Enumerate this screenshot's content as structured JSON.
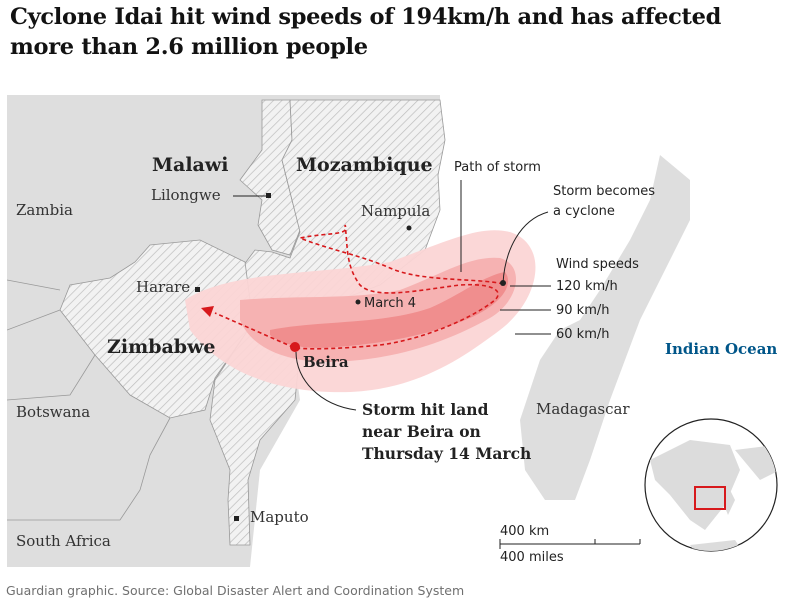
{
  "headline": "Cyclone Idai hit wind speeds of 194km/h and has affected more than 2.6 million people",
  "source": "Guardian graphic. Source: Global Disaster Alert and Coordination System",
  "countries": {
    "malawi": "Malawi",
    "mozambique": "Mozambique",
    "zimbabwe": "Zimbabwe",
    "zambia": "Zambia",
    "botswana": "Botswana",
    "south_africa": "South Africa",
    "madagascar": "Madagascar"
  },
  "cities": {
    "lilongwe": "Lilongwe",
    "harare": "Harare",
    "nampula": "Nampula",
    "beira": "Beira",
    "maputo": "Maputo"
  },
  "ocean": "Indian Ocean",
  "annotations": {
    "path_of_storm": "Path of storm",
    "cyclone_line1": "Storm becomes",
    "cyclone_line2": "a cyclone",
    "march4": "March 4",
    "landfall_line1": "Storm hit land",
    "landfall_line2": "near Beira on",
    "landfall_line3": "Thursday 14 March"
  },
  "wind_speeds": {
    "title": "Wind speeds",
    "levels": [
      "120 km/h",
      "90 km/h",
      "60 km/h"
    ]
  },
  "scale": {
    "km": "400 km",
    "miles": "400 miles"
  },
  "colors": {
    "land": "#dcdcdc",
    "land_other": "#e6e6e6",
    "hatch": "#b5b5b5",
    "storm_path": "#d7191c",
    "wind_outer": "#fbd5d5",
    "wind_mid": "#f6b0b0",
    "wind_inner": "#ef8a8a",
    "ocean_label": "#005689"
  }
}
